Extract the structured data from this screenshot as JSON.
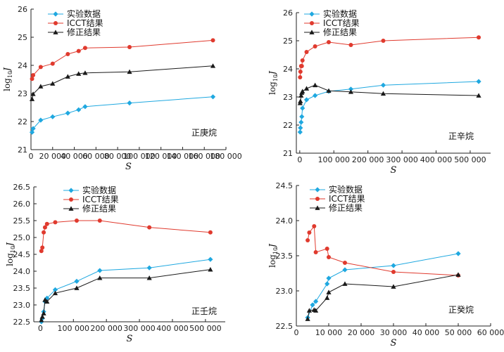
{
  "colors": {
    "exp": "#1fa8e0",
    "icct": "#e03a2e",
    "cor": "#1a1a1a"
  },
  "chart_data": [
    {
      "type": "line",
      "ylabel_base": "log",
      "ylabel_sub": "10",
      "ylabel_var": "J",
      "xlabel": "S",
      "annotation": "正庚烷",
      "xlim": [
        0,
        180000
      ],
      "xticks": [
        0,
        20000,
        40000,
        60000,
        80000,
        100000,
        120000,
        140000,
        160000,
        180000
      ],
      "xtick_labels": [
        "0",
        "20 000",
        "40 000",
        "60 000",
        "80 000",
        "100 000",
        "120 000",
        "140 000",
        "160 000",
        "180 000"
      ],
      "ylim": [
        21,
        26
      ],
      "yticks": [
        21,
        22,
        23,
        24,
        25,
        26
      ],
      "ytick_labels": [
        "21",
        "22",
        "23",
        "24",
        "25",
        "26"
      ],
      "legend": [
        "实验数据",
        "ICCT结果",
        "修正结果"
      ],
      "series": [
        {
          "name": "实验数据",
          "marker": "diamond",
          "x": [
            1000,
            2000,
            9000,
            20000,
            34000,
            44000,
            50000,
            91000,
            168000
          ],
          "y": [
            21.62,
            21.75,
            22.05,
            22.17,
            22.3,
            22.42,
            22.53,
            22.66,
            22.88
          ]
        },
        {
          "name": "ICCT结果",
          "marker": "circle",
          "x": [
            1000,
            2000,
            9000,
            20000,
            34000,
            44000,
            50000,
            91000,
            168000
          ],
          "y": [
            23.52,
            23.65,
            23.94,
            24.06,
            24.4,
            24.51,
            24.62,
            24.65,
            24.89
          ]
        },
        {
          "name": "修正结果",
          "marker": "triangle",
          "x": [
            1000,
            2000,
            9000,
            20000,
            34000,
            44000,
            50000,
            91000,
            168000
          ],
          "y": [
            22.8,
            22.98,
            23.25,
            23.35,
            23.6,
            23.7,
            23.73,
            23.77,
            23.98
          ]
        }
      ]
    },
    {
      "type": "line",
      "ylabel_base": "log",
      "ylabel_sub": "10",
      "ylabel_var": "J",
      "xlabel": "S",
      "annotation": "正辛烷",
      "xlim": [
        -10000,
        560000
      ],
      "xticks": [
        0,
        100000,
        200000,
        300000,
        400000,
        500000
      ],
      "xtick_labels": [
        "0",
        "100 000",
        "200 000",
        "300 000",
        "400 000",
        "500 000"
      ],
      "ylim": [
        21,
        26
      ],
      "yticks": [
        21,
        22,
        23,
        24,
        25,
        26
      ],
      "ytick_labels": [
        "21",
        "22",
        "23",
        "24",
        "25",
        "26"
      ],
      "legend": [
        "实验数据",
        "ICCT结果",
        "修正结果"
      ],
      "series": [
        {
          "name": "实验数据",
          "marker": "diamond",
          "x": [
            1000,
            2000,
            4000,
            6000,
            8000,
            20000,
            45000,
            85000,
            150000,
            245000,
            525000
          ],
          "y": [
            21.75,
            21.9,
            22.1,
            22.3,
            22.6,
            22.9,
            23.05,
            23.2,
            23.28,
            23.42,
            23.55
          ]
        },
        {
          "name": "ICCT结果",
          "marker": "circle",
          "x": [
            1000,
            2000,
            4000,
            6000,
            8000,
            20000,
            45000,
            85000,
            150000,
            245000,
            525000
          ],
          "y": [
            23.7,
            23.9,
            24.1,
            24.1,
            24.3,
            24.6,
            24.8,
            24.95,
            24.85,
            25.0,
            25.12
          ]
        },
        {
          "name": "修正结果",
          "marker": "triangle",
          "x": [
            1000,
            2000,
            4000,
            6000,
            8000,
            20000,
            45000,
            85000,
            150000,
            245000,
            525000
          ],
          "y": [
            22.78,
            22.85,
            23.05,
            23.15,
            23.2,
            23.3,
            23.42,
            23.22,
            23.18,
            23.12,
            23.05
          ]
        }
      ]
    },
    {
      "type": "line",
      "ylabel_base": "log",
      "ylabel_sub": "10",
      "ylabel_var": "J",
      "xlabel": "S",
      "annotation": "正壬烷",
      "xlim": [
        -20000,
        560000
      ],
      "xticks": [
        0,
        100000,
        200000,
        300000,
        400000,
        500000
      ],
      "xtick_labels": [
        "0",
        "100 000",
        "200 000",
        "300 000",
        "400 000",
        "500 000"
      ],
      "ylim": [
        22.5,
        26.5
      ],
      "yticks": [
        22.5,
        23.0,
        23.5,
        24.0,
        24.5,
        25.0,
        25.5,
        26.0,
        26.5
      ],
      "ytick_labels": [
        "22.5",
        "23.0",
        "23.5",
        "24.0",
        "24.5",
        "25.0",
        "25.5",
        "26.0",
        "26.5"
      ],
      "legend": [
        "实验数据",
        "ICCT结果",
        "修正结果"
      ],
      "series": [
        {
          "name": "实验数据",
          "marker": "diamond",
          "x": [
            3000,
            6000,
            10000,
            14000,
            20000,
            45000,
            110000,
            180000,
            330000,
            515000
          ],
          "y": [
            22.5,
            22.6,
            22.8,
            23.1,
            23.2,
            23.45,
            23.7,
            24.02,
            24.1,
            24.35
          ]
        },
        {
          "name": "ICCT结果",
          "marker": "circle",
          "x": [
            3000,
            6000,
            10000,
            14000,
            20000,
            45000,
            110000,
            180000,
            330000,
            515000
          ],
          "y": [
            24.6,
            24.7,
            25.15,
            25.3,
            25.4,
            25.45,
            25.5,
            25.5,
            25.3,
            25.15
          ]
        },
        {
          "name": "修正结果",
          "marker": "triangle",
          "x": [
            3000,
            6000,
            10000,
            14000,
            20000,
            45000,
            110000,
            180000,
            330000,
            515000
          ],
          "y": [
            22.55,
            22.65,
            22.75,
            23.15,
            23.1,
            23.35,
            23.5,
            23.8,
            23.8,
            24.05
          ]
        }
      ]
    },
    {
      "type": "line",
      "ylabel_base": "log",
      "ylabel_sub": "10",
      "ylabel_var": "J",
      "xlabel": "S",
      "annotation": "正癸烷",
      "xlim": [
        0,
        60000
      ],
      "xticks": [
        0,
        10000,
        20000,
        30000,
        40000,
        50000,
        60000
      ],
      "xtick_labels": [
        "0",
        "10 000",
        "20 000",
        "30 000",
        "40 000",
        "50 000",
        "60 000"
      ],
      "ylim": [
        22.5,
        24.5
      ],
      "yticks": [
        22.5,
        23.0,
        23.5,
        24.0,
        24.5
      ],
      "ytick_labels": [
        "22.5",
        "23.0",
        "23.5",
        "24.0",
        "24.5"
      ],
      "legend": [
        "实验数据",
        "ICCT结果",
        "修正结果"
      ],
      "series": [
        {
          "name": "实验数据",
          "marker": "diamond",
          "x": [
            3500,
            5000,
            6000,
            9500,
            10000,
            15000,
            30000,
            50000
          ],
          "y": [
            22.62,
            22.8,
            22.85,
            23.1,
            23.18,
            23.3,
            23.36,
            23.53
          ]
        },
        {
          "name": "ICCT结果",
          "marker": "circle",
          "x": [
            3500,
            4000,
            5500,
            6000,
            9500,
            10000,
            15000,
            30000,
            50000
          ],
          "y": [
            23.72,
            23.83,
            23.92,
            23.55,
            23.6,
            23.48,
            23.4,
            23.27,
            23.22
          ]
        },
        {
          "name": "修正结果",
          "marker": "triangle",
          "x": [
            3500,
            4000,
            5500,
            6000,
            9500,
            10000,
            15000,
            30000,
            50000
          ],
          "y": [
            22.6,
            22.72,
            22.73,
            22.72,
            22.9,
            22.98,
            23.1,
            23.06,
            23.23
          ]
        }
      ]
    }
  ]
}
